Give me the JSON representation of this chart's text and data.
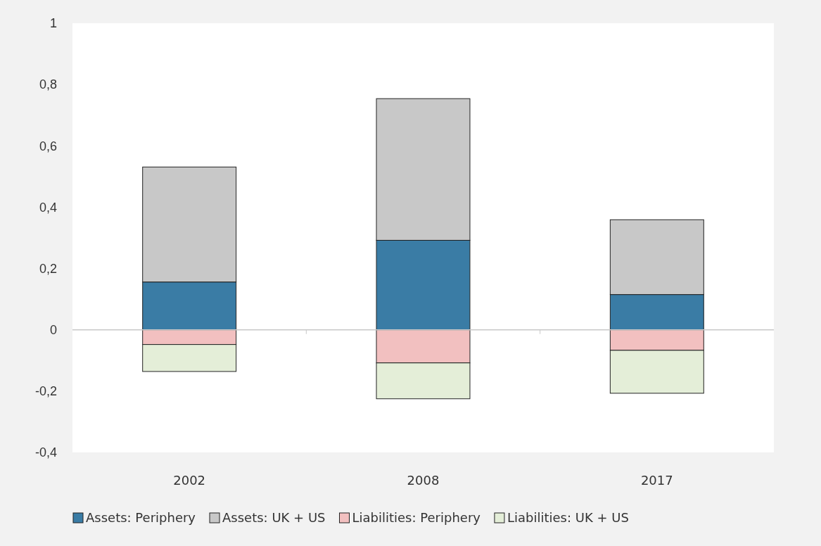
{
  "chart_data": {
    "type": "bar",
    "stacked": true,
    "categories": [
      "2002",
      "2008",
      "2017"
    ],
    "series": [
      {
        "name": "Assets: Periphery",
        "color": "#3a7ca5",
        "values": [
          0.156,
          0.292,
          0.115
        ]
      },
      {
        "name": "Assets: UK + US",
        "color": "#c8c8c8",
        "values": [
          0.375,
          0.462,
          0.244
        ]
      },
      {
        "name": "Liabilities: Periphery",
        "color": "#f2c0c0",
        "values": [
          -0.048,
          -0.108,
          -0.067
        ]
      },
      {
        "name": "Liabilities: UK + US",
        "color": "#e4eed8",
        "values": [
          -0.088,
          -0.117,
          -0.14
        ]
      }
    ],
    "ylim": [
      -0.4,
      1
    ],
    "yticks": [
      {
        "value": -0.4,
        "label": "-0,4"
      },
      {
        "value": -0.2,
        "label": "-0,2"
      },
      0,
      {
        "value": 0.2,
        "label": "0,2"
      },
      {
        "value": 0.4,
        "label": "0,4"
      },
      {
        "value": 0.6,
        "label": "0,6"
      },
      {
        "value": 0.8,
        "label": "0,8"
      },
      1
    ],
    "legend": "bottom"
  }
}
